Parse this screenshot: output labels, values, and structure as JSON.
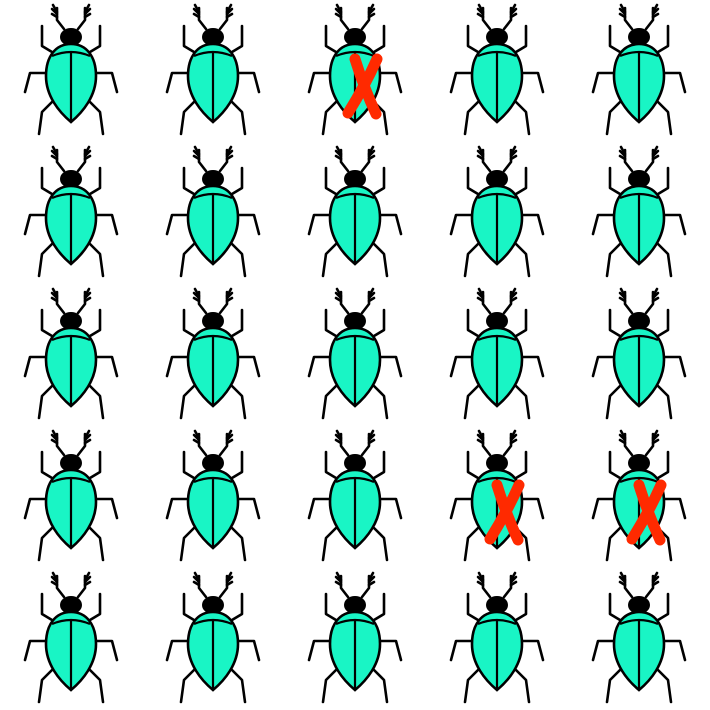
{
  "grid": {
    "rows": 5,
    "cols": 5,
    "item_icon": "beetle-icon",
    "marker_icon": "cross-mark-icon",
    "beetle_color": "#19f5c5",
    "outline_color": "#000000",
    "marker_color": "#ff2a00",
    "marked_cells": [
      {
        "row": 0,
        "col": 2
      },
      {
        "row": 3,
        "col": 3
      },
      {
        "row": 3,
        "col": 4
      }
    ]
  }
}
